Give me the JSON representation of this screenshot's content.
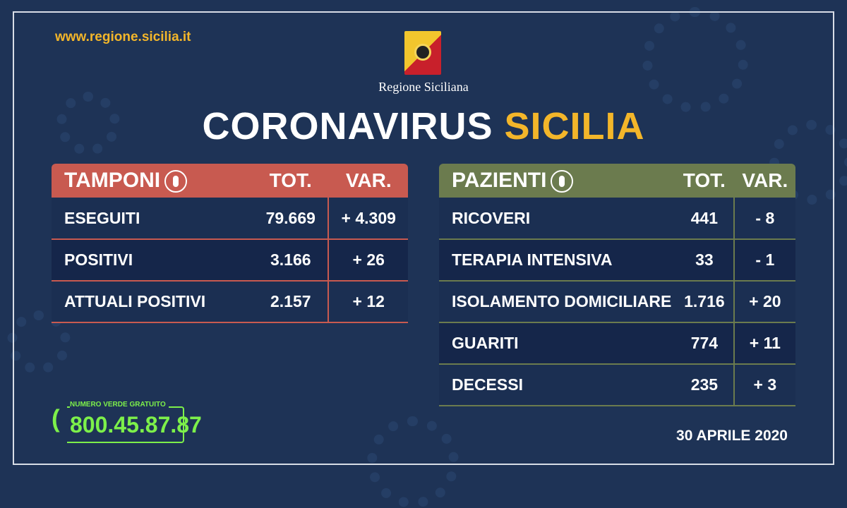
{
  "header": {
    "site": "www.regione.sicilia.it",
    "region": "Regione Siciliana",
    "title_main": "CORONAVIRUS",
    "title_accent": "SICILIA"
  },
  "colors": {
    "background": "#1e3356",
    "accent": "#f3b62a",
    "tamponi": "#c85a50",
    "pazienti": "#6b7b4e",
    "phone": "#7df04a"
  },
  "tamponi": {
    "title": "TAMPONI",
    "icon": "swab-icon",
    "tot": "TOT.",
    "var": "VAR.",
    "rows": [
      {
        "label": "ESEGUITI",
        "tot": "79.669",
        "var": "+ 4.309"
      },
      {
        "label": "POSITIVI",
        "tot": "3.166",
        "var": "+ 26"
      },
      {
        "label": "ATTUALI POSITIVI",
        "tot": "2.157",
        "var": "+ 12"
      }
    ]
  },
  "pazienti": {
    "title": "PAZIENTI",
    "icon": "person-icon",
    "tot": "TOT.",
    "var": "VAR.",
    "rows": [
      {
        "label": "RICOVERI",
        "tot": "441",
        "var": "- 8"
      },
      {
        "label": "TERAPIA INTENSIVA",
        "tot": "33",
        "var": "- 1"
      },
      {
        "label": "ISOLAMENTO DOMICILIARE",
        "tot": "1.716",
        "var": "+ 20"
      },
      {
        "label": "GUARITI",
        "tot": "774",
        "var": "+ 11"
      },
      {
        "label": "DECESSI",
        "tot": "235",
        "var": "+ 3"
      }
    ]
  },
  "phone": {
    "label": "NUMERO VERDE GRATUITO",
    "number": "800.45.87.87"
  },
  "date": "30 APRILE 2020"
}
